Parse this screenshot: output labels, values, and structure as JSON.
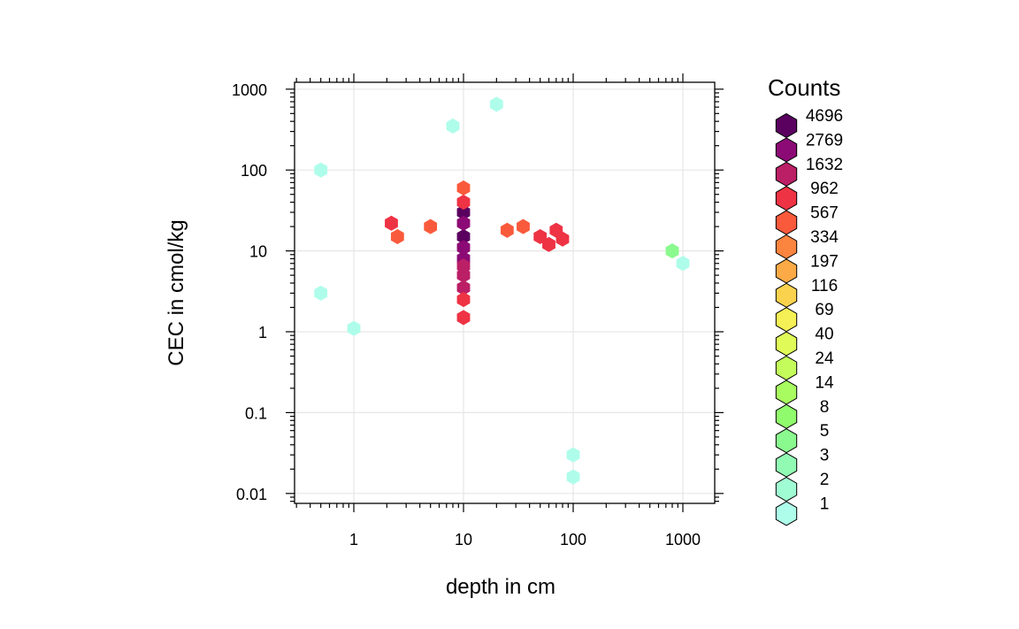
{
  "chart_data": {
    "type": "heatmap",
    "subtype": "hexbin",
    "xlabel": "depth in cm",
    "ylabel": "CEC in cmol/kg",
    "x_scale": "log10",
    "y_scale": "log10",
    "xlim": [
      0.3,
      2000
    ],
    "ylim": [
      0.007,
      1300
    ],
    "x_ticks": [
      {
        "value": 1,
        "label": "1"
      },
      {
        "value": 10,
        "label": "10"
      },
      {
        "value": 100,
        "label": "100"
      },
      {
        "value": 1000,
        "label": "1000"
      }
    ],
    "y_ticks": [
      {
        "value": 0.01,
        "label": "0.01"
      },
      {
        "value": 0.1,
        "label": "0.1"
      },
      {
        "value": 1,
        "label": "1"
      },
      {
        "value": 10,
        "label": "10"
      },
      {
        "value": 100,
        "label": "100"
      },
      {
        "value": 1000,
        "label": "1000"
      }
    ],
    "grid": true,
    "legend": {
      "title": "Counts",
      "placement": "right",
      "levels": [
        {
          "label": "4696",
          "color": "#5A005F"
        },
        {
          "label": "2769",
          "color": "#8C0A75"
        },
        {
          "label": "1632",
          "color": "#BB1F66"
        },
        {
          "label": "962",
          "color": "#EE3344"
        },
        {
          "label": "567",
          "color": "#FA5A3C"
        },
        {
          "label": "334",
          "color": "#FB843F"
        },
        {
          "label": "197",
          "color": "#FBAA46"
        },
        {
          "label": "116",
          "color": "#FBD24E"
        },
        {
          "label": "69",
          "color": "#F5F055"
        },
        {
          "label": "40",
          "color": "#E0FA58"
        },
        {
          "label": "24",
          "color": "#C3FC5B"
        },
        {
          "label": "14",
          "color": "#A8FC5F"
        },
        {
          "label": "8",
          "color": "#90FB6C"
        },
        {
          "label": "5",
          "color": "#8AFA8E"
        },
        {
          "label": "3",
          "color": "#91FBB4"
        },
        {
          "label": "2",
          "color": "#A0FCD2"
        },
        {
          "label": "1",
          "color": "#AEFDEA"
        }
      ]
    },
    "cells_description": "x = depth (cm), y = CEC (cmol/kg), level = legend index 0..16 (0 = 4696 ... 16 = 1)",
    "cells": [
      {
        "x": 10,
        "y": 30,
        "level": 0
      },
      {
        "x": 10,
        "y": 15,
        "level": 0
      },
      {
        "x": 10,
        "y": 8,
        "level": 1
      },
      {
        "x": 10,
        "y": 5,
        "level": 2
      },
      {
        "x": 10,
        "y": 3.5,
        "level": 2
      },
      {
        "x": 10,
        "y": 22,
        "level": 1
      },
      {
        "x": 10,
        "y": 11,
        "level": 1
      },
      {
        "x": 10,
        "y": 6.5,
        "level": 2
      },
      {
        "x": 10,
        "y": 40,
        "level": 3
      },
      {
        "x": 10,
        "y": 2.5,
        "level": 3
      },
      {
        "x": 10,
        "y": 1.5,
        "level": 3
      },
      {
        "x": 10,
        "y": 60,
        "level": 4
      },
      {
        "x": 50,
        "y": 15,
        "level": 3
      },
      {
        "x": 70,
        "y": 18,
        "level": 3
      },
      {
        "x": 60,
        "y": 12,
        "level": 3
      },
      {
        "x": 80,
        "y": 14,
        "level": 3
      },
      {
        "x": 35,
        "y": 20,
        "level": 4
      },
      {
        "x": 25,
        "y": 18,
        "level": 4
      },
      {
        "x": 2.2,
        "y": 22,
        "level": 3
      },
      {
        "x": 2.5,
        "y": 15,
        "level": 4
      },
      {
        "x": 5,
        "y": 20,
        "level": 4
      },
      {
        "x": 0.5,
        "y": 100,
        "level": 16
      },
      {
        "x": 0.5,
        "y": 3,
        "level": 16
      },
      {
        "x": 1,
        "y": 1.1,
        "level": 16
      },
      {
        "x": 20,
        "y": 650,
        "level": 16
      },
      {
        "x": 8,
        "y": 350,
        "level": 16
      },
      {
        "x": 100,
        "y": 0.016,
        "level": 16
      },
      {
        "x": 1000,
        "y": 7,
        "level": 16
      },
      {
        "x": 100,
        "y": 0.03,
        "level": 16
      },
      {
        "x": 800,
        "y": 10,
        "level": 13
      }
    ]
  }
}
